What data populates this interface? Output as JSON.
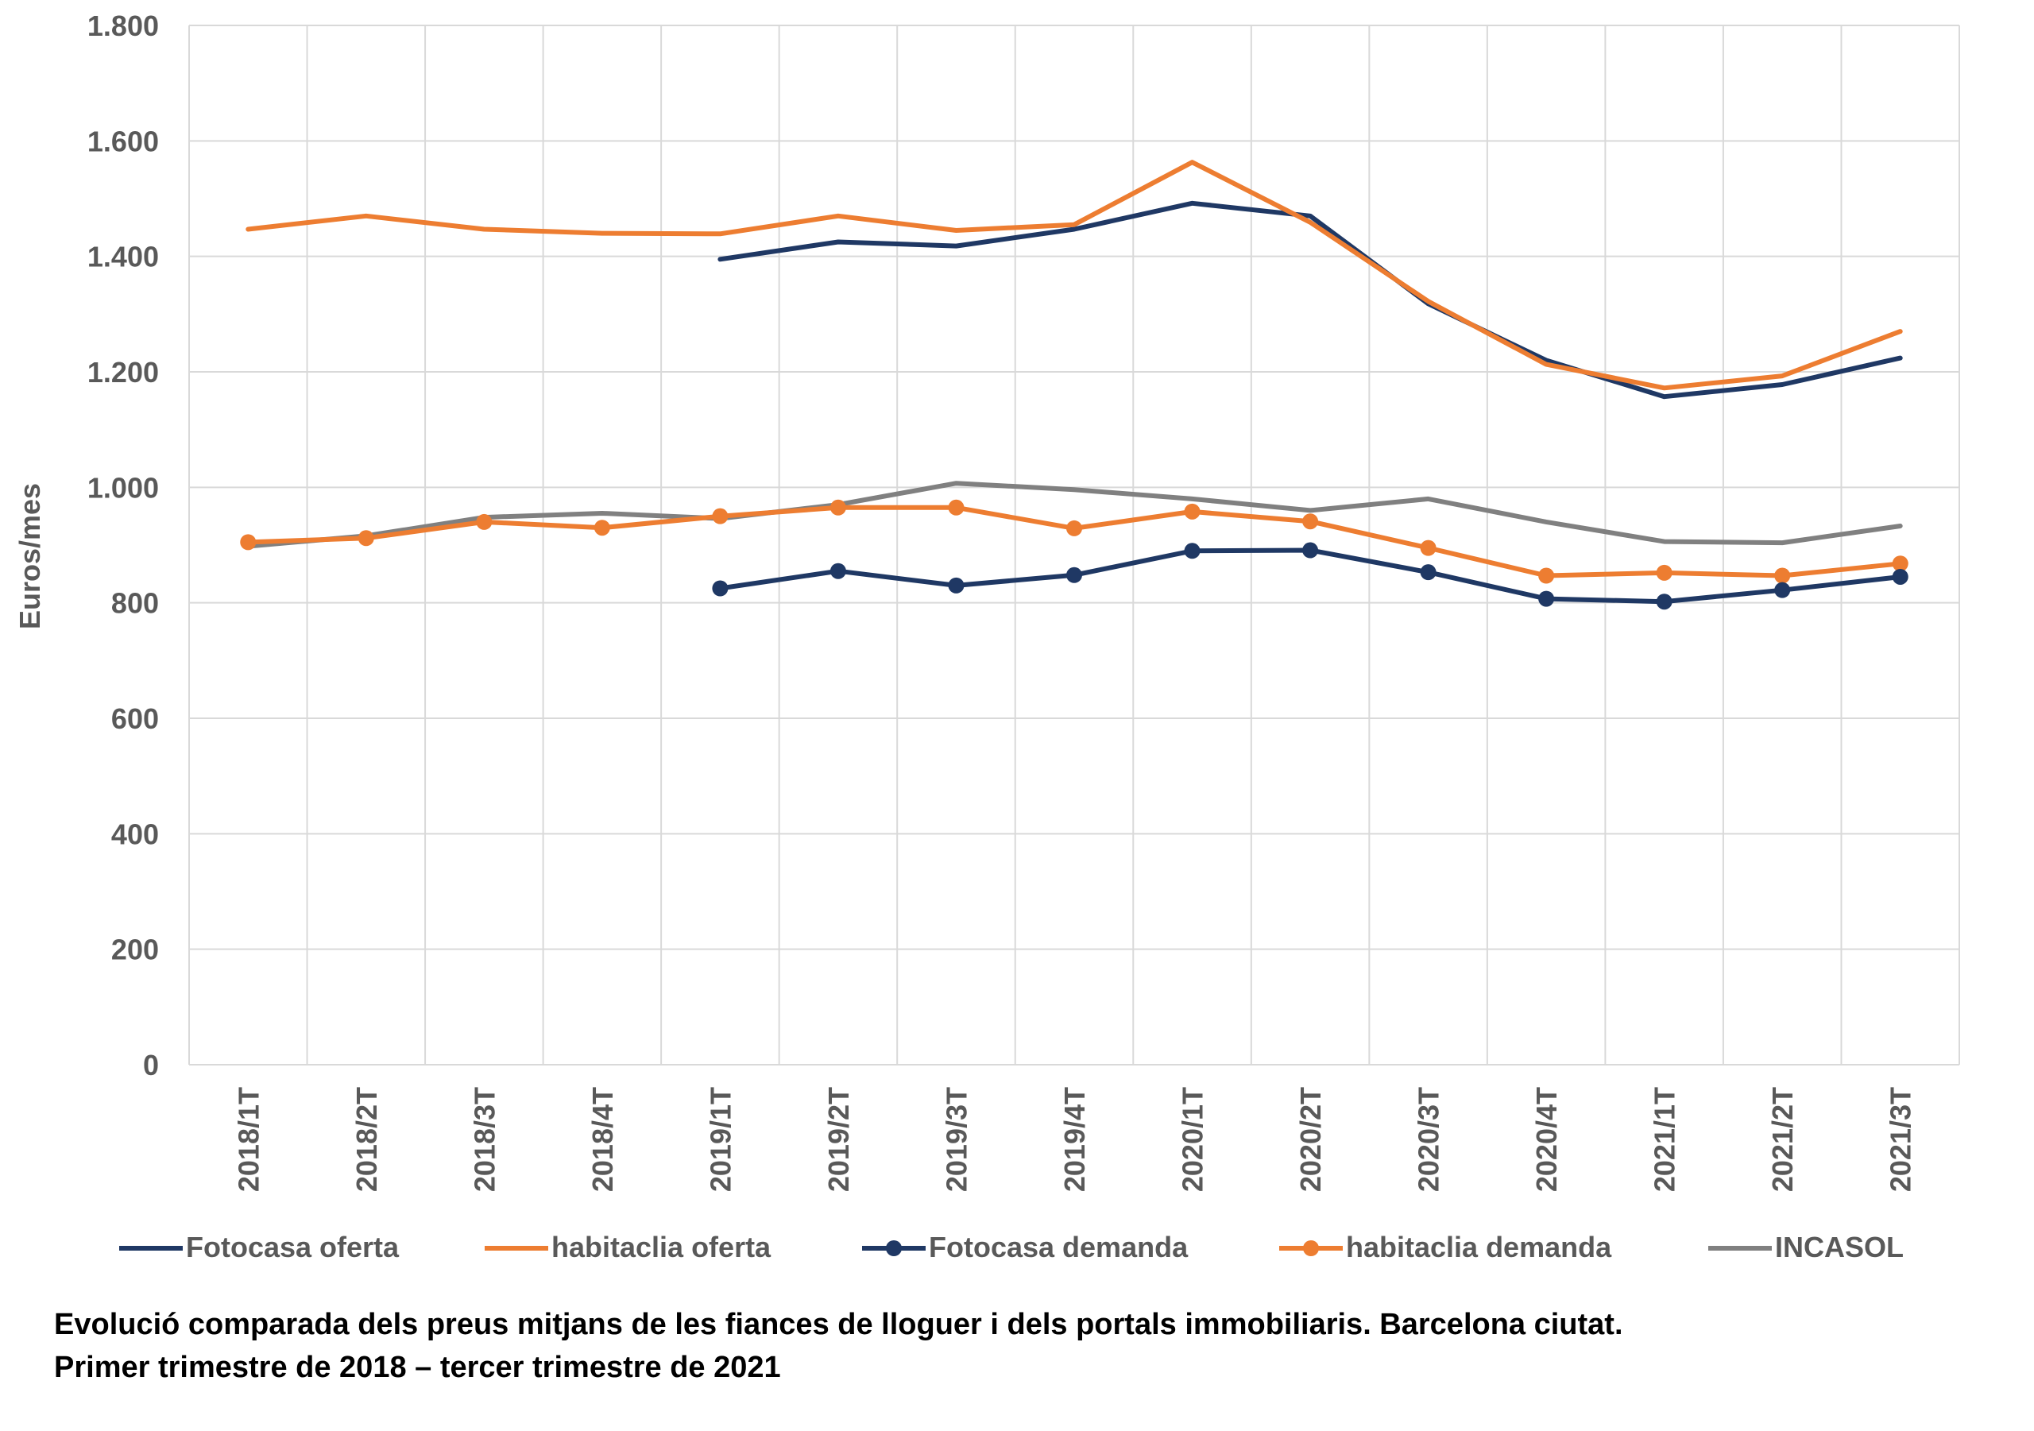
{
  "chart_data": {
    "type": "line",
    "ylabel": "Euros/mes",
    "ylim": [
      0,
      1800
    ],
    "yticks": [
      0,
      200,
      400,
      600,
      800,
      1000,
      1200,
      1400,
      1600,
      1800
    ],
    "ytick_labels": [
      "0",
      "200",
      "400",
      "600",
      "800",
      "1.000",
      "1.200",
      "1.400",
      "1.600",
      "1.800"
    ],
    "categories": [
      "2018/1T",
      "2018/2T",
      "2018/3T",
      "2018/4T",
      "2019/1T",
      "2019/2T",
      "2019/3T",
      "2019/4T",
      "2020/1T",
      "2020/2T",
      "2020/3T",
      "2020/4T",
      "2021/1T",
      "2021/2T",
      "2021/3T"
    ],
    "grid": true,
    "legend_position": "bottom",
    "series": [
      {
        "name": "Fotocasa oferta",
        "color": "#1f3864",
        "marker": false,
        "values": [
          null,
          null,
          null,
          null,
          1395,
          1425,
          1418,
          1447,
          1492,
          1470,
          1318,
          1220,
          1157,
          1178,
          1224
        ]
      },
      {
        "name": "habitaclia oferta",
        "color": "#ed7d31",
        "marker": false,
        "values": [
          1447,
          1470,
          1447,
          1440,
          1439,
          1470,
          1445,
          1455,
          1563,
          1459,
          1322,
          1213,
          1172,
          1193,
          1270
        ]
      },
      {
        "name": "Fotocasa demanda",
        "color": "#1f3864",
        "marker": true,
        "values": [
          null,
          null,
          null,
          null,
          825,
          855,
          830,
          848,
          890,
          891,
          853,
          807,
          802,
          822,
          845
        ]
      },
      {
        "name": "habitaclia demanda",
        "color": "#ed7d31",
        "marker": true,
        "values": [
          905,
          912,
          940,
          930,
          950,
          965,
          965,
          929,
          958,
          941,
          895,
          847,
          852,
          847,
          868
        ]
      },
      {
        "name": "INCASOL",
        "color": "#808080",
        "marker": false,
        "values": [
          898,
          916,
          948,
          955,
          946,
          970,
          1007,
          996,
          980,
          960,
          980,
          940,
          906,
          904,
          933
        ]
      }
    ]
  },
  "caption": {
    "line1": "Evolució comparada dels preus mitjans de les fiances de lloguer i dels portals immobiliaris. Barcelona ciutat.",
    "line2": "Primer trimestre de 2018 – tercer trimestre de 2021"
  }
}
